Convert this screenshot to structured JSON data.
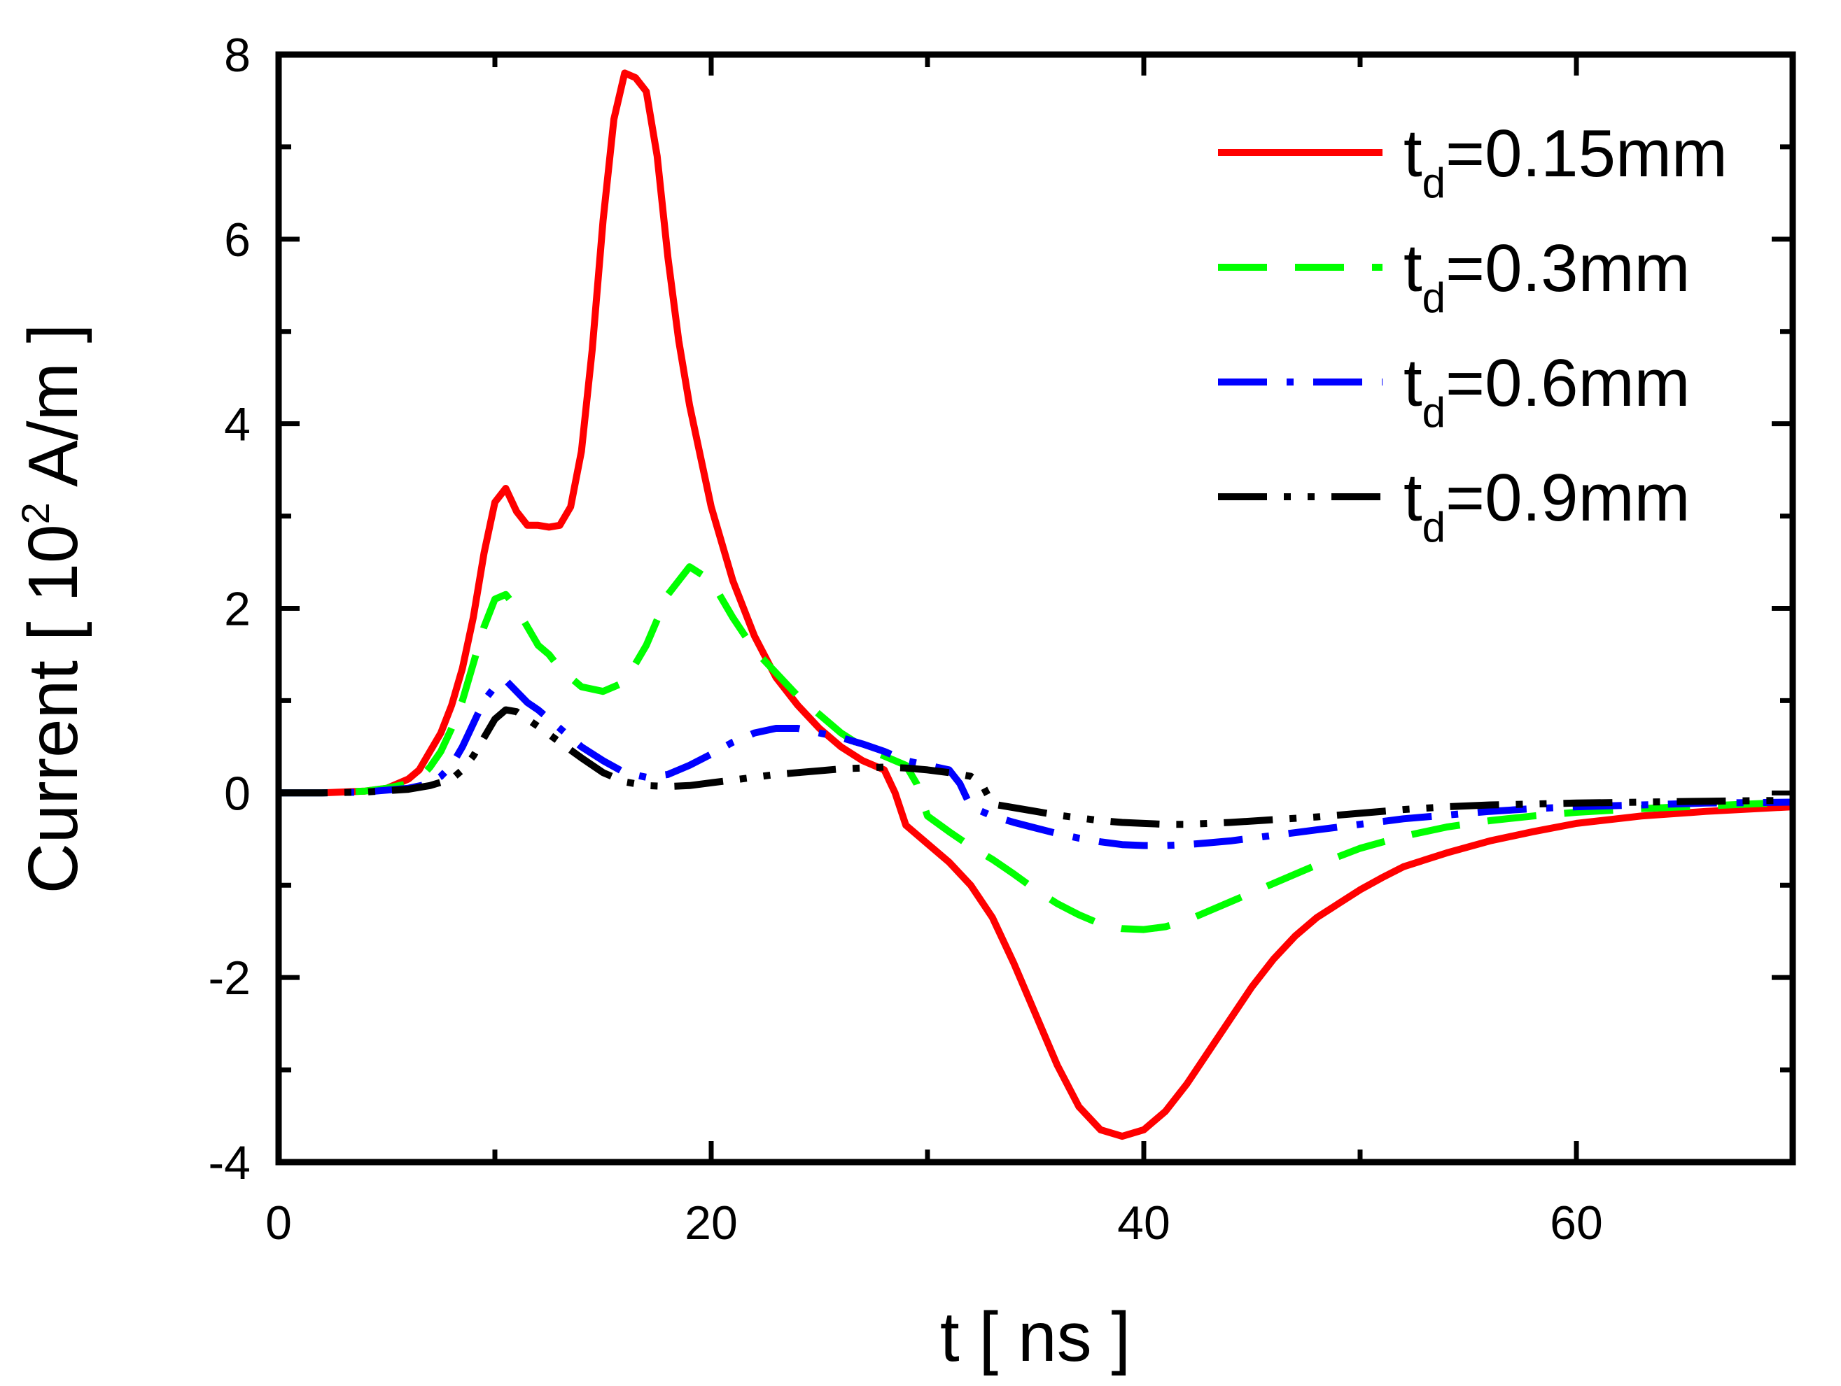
{
  "chart_data": {
    "type": "line",
    "title": "",
    "xlabel": "t [ ns ]",
    "ylabel": {
      "prefix": "Current [ 10",
      "superscript": "2",
      "suffix": " A/m ]"
    },
    "xlim": [
      0,
      70
    ],
    "ylim": [
      -4,
      8
    ],
    "x_major_ticks": [
      0,
      20,
      40,
      60
    ],
    "x_minor_ticks": [
      10,
      30,
      50,
      70
    ],
    "y_major_ticks": [
      -4,
      -2,
      0,
      2,
      4,
      6,
      8
    ],
    "y_minor_ticks": [
      -3,
      -1,
      1,
      3,
      5,
      7
    ],
    "legend_position": "top-right",
    "grid": false,
    "series": [
      {
        "name": "t_d=0.15mm",
        "label_main": "t",
        "label_sub": "d",
        "label_rest": "=0.15mm",
        "color": "#ff0000",
        "dash": "solid",
        "points": [
          [
            0,
            0
          ],
          [
            2,
            0
          ],
          [
            4,
            0.02
          ],
          [
            5,
            0.05
          ],
          [
            6,
            0.15
          ],
          [
            6.5,
            0.25
          ],
          [
            7,
            0.45
          ],
          [
            7.5,
            0.65
          ],
          [
            8,
            0.95
          ],
          [
            8.5,
            1.35
          ],
          [
            9,
            1.9
          ],
          [
            9.5,
            2.6
          ],
          [
            10,
            3.15
          ],
          [
            10.5,
            3.3
          ],
          [
            11,
            3.05
          ],
          [
            11.5,
            2.9
          ],
          [
            12,
            2.9
          ],
          [
            12.5,
            2.88
          ],
          [
            13,
            2.9
          ],
          [
            13.5,
            3.1
          ],
          [
            14,
            3.7
          ],
          [
            14.5,
            4.8
          ],
          [
            15,
            6.2
          ],
          [
            15.5,
            7.3
          ],
          [
            16,
            7.8
          ],
          [
            16.5,
            7.75
          ],
          [
            17,
            7.6
          ],
          [
            17.5,
            6.9
          ],
          [
            18,
            5.8
          ],
          [
            18.5,
            4.9
          ],
          [
            19,
            4.2
          ],
          [
            20,
            3.1
          ],
          [
            21,
            2.3
          ],
          [
            22,
            1.7
          ],
          [
            23,
            1.25
          ],
          [
            24,
            0.95
          ],
          [
            25,
            0.7
          ],
          [
            26,
            0.5
          ],
          [
            27,
            0.35
          ],
          [
            28,
            0.25
          ],
          [
            28.5,
            0
          ],
          [
            29,
            -0.35
          ],
          [
            30,
            -0.55
          ],
          [
            31,
            -0.75
          ],
          [
            32,
            -1.0
          ],
          [
            33,
            -1.35
          ],
          [
            34,
            -1.85
          ],
          [
            35,
            -2.4
          ],
          [
            36,
            -2.95
          ],
          [
            37,
            -3.4
          ],
          [
            38,
            -3.65
          ],
          [
            39,
            -3.72
          ],
          [
            40,
            -3.65
          ],
          [
            41,
            -3.45
          ],
          [
            42,
            -3.15
          ],
          [
            43,
            -2.8
          ],
          [
            44,
            -2.45
          ],
          [
            45,
            -2.1
          ],
          [
            46,
            -1.8
          ],
          [
            47,
            -1.55
          ],
          [
            48,
            -1.35
          ],
          [
            49,
            -1.2
          ],
          [
            50,
            -1.05
          ],
          [
            51,
            -0.92
          ],
          [
            52,
            -0.8
          ],
          [
            54,
            -0.65
          ],
          [
            56,
            -0.52
          ],
          [
            58,
            -0.42
          ],
          [
            60,
            -0.33
          ],
          [
            63,
            -0.25
          ],
          [
            66,
            -0.2
          ],
          [
            70,
            -0.15
          ]
        ]
      },
      {
        "name": "t_d=0.3mm",
        "label_main": "t",
        "label_sub": "d",
        "label_rest": "=0.3mm",
        "color": "#00ff00",
        "dash": "dash",
        "points": [
          [
            0,
            0
          ],
          [
            2,
            0
          ],
          [
            4,
            0.02
          ],
          [
            5,
            0.05
          ],
          [
            6,
            0.1
          ],
          [
            6.5,
            0.15
          ],
          [
            7,
            0.28
          ],
          [
            7.5,
            0.45
          ],
          [
            8,
            0.7
          ],
          [
            8.5,
            1.0
          ],
          [
            9,
            1.4
          ],
          [
            9.5,
            1.8
          ],
          [
            10,
            2.1
          ],
          [
            10.5,
            2.15
          ],
          [
            11,
            2.0
          ],
          [
            11.5,
            1.8
          ],
          [
            12,
            1.6
          ],
          [
            12.5,
            1.5
          ],
          [
            13,
            1.35
          ],
          [
            14,
            1.15
          ],
          [
            15,
            1.1
          ],
          [
            16,
            1.2
          ],
          [
            17,
            1.6
          ],
          [
            18,
            2.15
          ],
          [
            19,
            2.45
          ],
          [
            20,
            2.3
          ],
          [
            21,
            1.9
          ],
          [
            22,
            1.55
          ],
          [
            23,
            1.3
          ],
          [
            24,
            1.05
          ],
          [
            25,
            0.85
          ],
          [
            26,
            0.65
          ],
          [
            27,
            0.5
          ],
          [
            28,
            0.4
          ],
          [
            29,
            0.3
          ],
          [
            29.5,
            0.1
          ],
          [
            30,
            -0.25
          ],
          [
            31,
            -0.42
          ],
          [
            32,
            -0.58
          ],
          [
            33,
            -0.72
          ],
          [
            34,
            -0.88
          ],
          [
            35,
            -1.05
          ],
          [
            36,
            -1.2
          ],
          [
            37,
            -1.32
          ],
          [
            38,
            -1.42
          ],
          [
            39,
            -1.47
          ],
          [
            40,
            -1.48
          ],
          [
            41,
            -1.45
          ],
          [
            42,
            -1.38
          ],
          [
            43,
            -1.28
          ],
          [
            44,
            -1.18
          ],
          [
            45,
            -1.08
          ],
          [
            46,
            -0.98
          ],
          [
            47,
            -0.88
          ],
          [
            48,
            -0.78
          ],
          [
            50,
            -0.6
          ],
          [
            52,
            -0.47
          ],
          [
            54,
            -0.37
          ],
          [
            56,
            -0.3
          ],
          [
            58,
            -0.25
          ],
          [
            60,
            -0.21
          ],
          [
            63,
            -0.17
          ],
          [
            66,
            -0.14
          ],
          [
            70,
            -0.1
          ]
        ]
      },
      {
        "name": "t_d=0.6mm",
        "label_main": "t",
        "label_sub": "d",
        "label_rest": "=0.6mm",
        "color": "#0000ff",
        "dash": "dashdot",
        "points": [
          [
            0,
            0
          ],
          [
            2,
            0
          ],
          [
            4,
            0.01
          ],
          [
            6,
            0.05
          ],
          [
            7,
            0.1
          ],
          [
            7.5,
            0.18
          ],
          [
            8,
            0.3
          ],
          [
            8.5,
            0.5
          ],
          [
            9,
            0.75
          ],
          [
            9.5,
            1.0
          ],
          [
            10,
            1.15
          ],
          [
            10.5,
            1.22
          ],
          [
            11,
            1.1
          ],
          [
            11.5,
            0.98
          ],
          [
            12,
            0.9
          ],
          [
            12.5,
            0.8
          ],
          [
            13,
            0.7
          ],
          [
            14,
            0.5
          ],
          [
            15,
            0.35
          ],
          [
            16,
            0.22
          ],
          [
            17,
            0.17
          ],
          [
            18,
            0.2
          ],
          [
            19,
            0.3
          ],
          [
            20,
            0.42
          ],
          [
            21,
            0.55
          ],
          [
            22,
            0.65
          ],
          [
            23,
            0.7
          ],
          [
            24,
            0.7
          ],
          [
            25,
            0.65
          ],
          [
            26,
            0.6
          ],
          [
            27,
            0.53
          ],
          [
            28,
            0.45
          ],
          [
            29,
            0.35
          ],
          [
            30,
            0.3
          ],
          [
            31,
            0.25
          ],
          [
            31.5,
            0.1
          ],
          [
            32,
            -0.15
          ],
          [
            33,
            -0.25
          ],
          [
            34,
            -0.32
          ],
          [
            35,
            -0.38
          ],
          [
            36,
            -0.44
          ],
          [
            37,
            -0.49
          ],
          [
            38,
            -0.53
          ],
          [
            39,
            -0.56
          ],
          [
            40,
            -0.57
          ],
          [
            41,
            -0.57
          ],
          [
            42,
            -0.56
          ],
          [
            43,
            -0.54
          ],
          [
            44,
            -0.52
          ],
          [
            46,
            -0.46
          ],
          [
            48,
            -0.4
          ],
          [
            50,
            -0.34
          ],
          [
            52,
            -0.28
          ],
          [
            54,
            -0.24
          ],
          [
            56,
            -0.2
          ],
          [
            58,
            -0.17
          ],
          [
            60,
            -0.15
          ],
          [
            63,
            -0.13
          ],
          [
            66,
            -0.11
          ],
          [
            70,
            -0.1
          ]
        ]
      },
      {
        "name": "t_d=0.9mm",
        "label_main": "t",
        "label_sub": "d",
        "label_rest": "=0.9mm",
        "color": "#000000",
        "dash": "dashdotdot",
        "points": [
          [
            0,
            0
          ],
          [
            2,
            0
          ],
          [
            4,
            0.01
          ],
          [
            6,
            0.04
          ],
          [
            7,
            0.08
          ],
          [
            8,
            0.15
          ],
          [
            8.5,
            0.25
          ],
          [
            9,
            0.4
          ],
          [
            9.5,
            0.6
          ],
          [
            10,
            0.8
          ],
          [
            10.5,
            0.9
          ],
          [
            11,
            0.88
          ],
          [
            11.5,
            0.8
          ],
          [
            12,
            0.72
          ],
          [
            13,
            0.55
          ],
          [
            14,
            0.38
          ],
          [
            15,
            0.22
          ],
          [
            16,
            0.12
          ],
          [
            17,
            0.08
          ],
          [
            18,
            0.07
          ],
          [
            19,
            0.08
          ],
          [
            20,
            0.11
          ],
          [
            21,
            0.14
          ],
          [
            22,
            0.17
          ],
          [
            23,
            0.2
          ],
          [
            24,
            0.22
          ],
          [
            25,
            0.24
          ],
          [
            26,
            0.26
          ],
          [
            27,
            0.27
          ],
          [
            28,
            0.28
          ],
          [
            29,
            0.27
          ],
          [
            30,
            0.25
          ],
          [
            31,
            0.22
          ],
          [
            32,
            0.18
          ],
          [
            32.5,
            0.1
          ],
          [
            33,
            -0.12
          ],
          [
            34,
            -0.16
          ],
          [
            35,
            -0.2
          ],
          [
            36,
            -0.24
          ],
          [
            37,
            -0.27
          ],
          [
            38,
            -0.3
          ],
          [
            39,
            -0.32
          ],
          [
            40,
            -0.33
          ],
          [
            41,
            -0.34
          ],
          [
            42,
            -0.34
          ],
          [
            43,
            -0.33
          ],
          [
            44,
            -0.32
          ],
          [
            46,
            -0.29
          ],
          [
            48,
            -0.26
          ],
          [
            50,
            -0.22
          ],
          [
            52,
            -0.18
          ],
          [
            54,
            -0.15
          ],
          [
            56,
            -0.13
          ],
          [
            58,
            -0.12
          ],
          [
            60,
            -0.11
          ],
          [
            63,
            -0.1
          ],
          [
            66,
            -0.09
          ],
          [
            70,
            -0.08
          ]
        ]
      }
    ]
  }
}
